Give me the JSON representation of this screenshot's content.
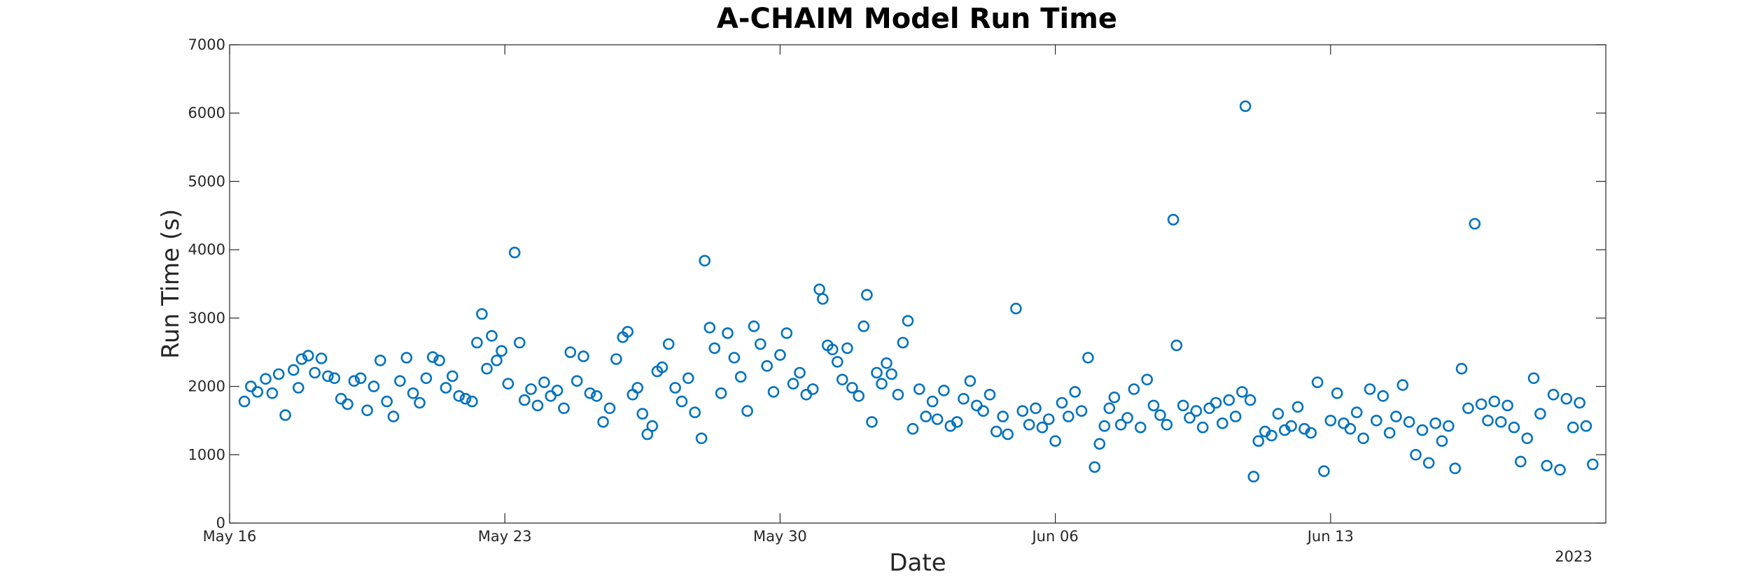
{
  "chart_data": {
    "type": "scatter",
    "title": "A-CHAIM Model Run Time",
    "xlabel": "Date",
    "ylabel": "Run Time (s)",
    "year_label": "2023",
    "x_axis": {
      "min": "2023-05-16",
      "max": "2023-06-20",
      "ticks": [
        {
          "date": "2023-05-16",
          "label": "May 16"
        },
        {
          "date": "2023-05-23",
          "label": "May 23"
        },
        {
          "date": "2023-05-30",
          "label": "May 30"
        },
        {
          "date": "2023-06-06",
          "label": "Jun 06"
        },
        {
          "date": "2023-06-13",
          "label": "Jun 13"
        }
      ]
    },
    "y_axis": {
      "min": 0,
      "max": 7000,
      "ticks": [
        0,
        1000,
        2000,
        3000,
        4000,
        5000,
        6000,
        7000
      ]
    },
    "grid": false,
    "marker": "open-circle",
    "color": "#0072BD",
    "note": "Approximately four runs per day; points are estimated from the plot.",
    "series": [
      {
        "points": [
          {
            "x": "2023-05-16T09:00",
            "y": 1780
          },
          {
            "x": "2023-05-16T13:00",
            "y": 2000
          },
          {
            "x": "2023-05-16T17:00",
            "y": 1920
          },
          {
            "x": "2023-05-16T22:00",
            "y": 2110
          },
          {
            "x": "2023-05-17T02:00",
            "y": 1900
          },
          {
            "x": "2023-05-17T06:00",
            "y": 2180
          },
          {
            "x": "2023-05-17T10:00",
            "y": 1580
          },
          {
            "x": "2023-05-17T15:00",
            "y": 2240
          },
          {
            "x": "2023-05-17T18:00",
            "y": 1980
          },
          {
            "x": "2023-05-17T20:00",
            "y": 2400
          },
          {
            "x": "2023-05-18T00:00",
            "y": 2450
          },
          {
            "x": "2023-05-18T04:00",
            "y": 2200
          },
          {
            "x": "2023-05-18T08:00",
            "y": 2410
          },
          {
            "x": "2023-05-18T12:00",
            "y": 2150
          },
          {
            "x": "2023-05-18T16:00",
            "y": 2120
          },
          {
            "x": "2023-05-18T20:00",
            "y": 1820
          },
          {
            "x": "2023-05-19T00:00",
            "y": 1740
          },
          {
            "x": "2023-05-19T04:00",
            "y": 2080
          },
          {
            "x": "2023-05-19T08:00",
            "y": 2120
          },
          {
            "x": "2023-05-19T12:00",
            "y": 1650
          },
          {
            "x": "2023-05-19T16:00",
            "y": 2000
          },
          {
            "x": "2023-05-19T20:00",
            "y": 2380
          },
          {
            "x": "2023-05-20T00:00",
            "y": 1780
          },
          {
            "x": "2023-05-20T04:00",
            "y": 1560
          },
          {
            "x": "2023-05-20T08:00",
            "y": 2080
          },
          {
            "x": "2023-05-20T12:00",
            "y": 2420
          },
          {
            "x": "2023-05-20T16:00",
            "y": 1900
          },
          {
            "x": "2023-05-20T20:00",
            "y": 1760
          },
          {
            "x": "2023-05-21T00:00",
            "y": 2120
          },
          {
            "x": "2023-05-21T04:00",
            "y": 2430
          },
          {
            "x": "2023-05-21T08:00",
            "y": 2380
          },
          {
            "x": "2023-05-21T12:00",
            "y": 1980
          },
          {
            "x": "2023-05-21T16:00",
            "y": 2150
          },
          {
            "x": "2023-05-21T20:00",
            "y": 1860
          },
          {
            "x": "2023-05-22T00:00",
            "y": 1820
          },
          {
            "x": "2023-05-22T04:00",
            "y": 1780
          },
          {
            "x": "2023-05-22T07:00",
            "y": 2640
          },
          {
            "x": "2023-05-22T10:00",
            "y": 3060
          },
          {
            "x": "2023-05-22T13:00",
            "y": 2260
          },
          {
            "x": "2023-05-22T16:00",
            "y": 2740
          },
          {
            "x": "2023-05-22T19:00",
            "y": 2380
          },
          {
            "x": "2023-05-22T22:00",
            "y": 2520
          },
          {
            "x": "2023-05-23T02:00",
            "y": 2040
          },
          {
            "x": "2023-05-23T06:00",
            "y": 3960
          },
          {
            "x": "2023-05-23T09:00",
            "y": 2640
          },
          {
            "x": "2023-05-23T12:00",
            "y": 1800
          },
          {
            "x": "2023-05-23T16:00",
            "y": 1960
          },
          {
            "x": "2023-05-23T20:00",
            "y": 1720
          },
          {
            "x": "2023-05-24T00:00",
            "y": 2060
          },
          {
            "x": "2023-05-24T04:00",
            "y": 1860
          },
          {
            "x": "2023-05-24T08:00",
            "y": 1940
          },
          {
            "x": "2023-05-24T12:00",
            "y": 1680
          },
          {
            "x": "2023-05-24T16:00",
            "y": 2500
          },
          {
            "x": "2023-05-24T20:00",
            "y": 2080
          },
          {
            "x": "2023-05-25T00:00",
            "y": 2440
          },
          {
            "x": "2023-05-25T04:00",
            "y": 1900
          },
          {
            "x": "2023-05-25T08:00",
            "y": 1860
          },
          {
            "x": "2023-05-25T12:00",
            "y": 1480
          },
          {
            "x": "2023-05-25T16:00",
            "y": 1680
          },
          {
            "x": "2023-05-25T20:00",
            "y": 2400
          },
          {
            "x": "2023-05-26T00:00",
            "y": 2720
          },
          {
            "x": "2023-05-26T03:00",
            "y": 2800
          },
          {
            "x": "2023-05-26T06:00",
            "y": 1880
          },
          {
            "x": "2023-05-26T09:00",
            "y": 1980
          },
          {
            "x": "2023-05-26T12:00",
            "y": 1600
          },
          {
            "x": "2023-05-26T15:00",
            "y": 1300
          },
          {
            "x": "2023-05-26T18:00",
            "y": 1420
          },
          {
            "x": "2023-05-26T21:00",
            "y": 2220
          },
          {
            "x": "2023-05-27T00:00",
            "y": 2280
          },
          {
            "x": "2023-05-27T04:00",
            "y": 2620
          },
          {
            "x": "2023-05-27T08:00",
            "y": 1980
          },
          {
            "x": "2023-05-27T12:00",
            "y": 1780
          },
          {
            "x": "2023-05-27T16:00",
            "y": 2120
          },
          {
            "x": "2023-05-27T20:00",
            "y": 1620
          },
          {
            "x": "2023-05-28T00:00",
            "y": 1240
          },
          {
            "x": "2023-05-28T02:00",
            "y": 3840
          },
          {
            "x": "2023-05-28T05:00",
            "y": 2860
          },
          {
            "x": "2023-05-28T08:00",
            "y": 2560
          },
          {
            "x": "2023-05-28T12:00",
            "y": 1900
          },
          {
            "x": "2023-05-28T16:00",
            "y": 2780
          },
          {
            "x": "2023-05-28T20:00",
            "y": 2420
          },
          {
            "x": "2023-05-29T00:00",
            "y": 2140
          },
          {
            "x": "2023-05-29T04:00",
            "y": 1640
          },
          {
            "x": "2023-05-29T08:00",
            "y": 2880
          },
          {
            "x": "2023-05-29T12:00",
            "y": 2620
          },
          {
            "x": "2023-05-29T16:00",
            "y": 2300
          },
          {
            "x": "2023-05-29T20:00",
            "y": 1920
          },
          {
            "x": "2023-05-30T00:00",
            "y": 2460
          },
          {
            "x": "2023-05-30T04:00",
            "y": 2780
          },
          {
            "x": "2023-05-30T08:00",
            "y": 2040
          },
          {
            "x": "2023-05-30T12:00",
            "y": 2200
          },
          {
            "x": "2023-05-30T16:00",
            "y": 1880
          },
          {
            "x": "2023-05-30T20:00",
            "y": 1960
          },
          {
            "x": "2023-05-31T00:00",
            "y": 3420
          },
          {
            "x": "2023-05-31T02:00",
            "y": 3280
          },
          {
            "x": "2023-05-31T05:00",
            "y": 2600
          },
          {
            "x": "2023-05-31T08:00",
            "y": 2540
          },
          {
            "x": "2023-05-31T11:00",
            "y": 2360
          },
          {
            "x": "2023-05-31T14:00",
            "y": 2100
          },
          {
            "x": "2023-05-31T17:00",
            "y": 2560
          },
          {
            "x": "2023-05-31T20:00",
            "y": 1980
          },
          {
            "x": "2023-06-01T00:00",
            "y": 1860
          },
          {
            "x": "2023-06-01T03:00",
            "y": 2880
          },
          {
            "x": "2023-06-01T05:00",
            "y": 3340
          },
          {
            "x": "2023-06-01T08:00",
            "y": 1480
          },
          {
            "x": "2023-06-01T11:00",
            "y": 2200
          },
          {
            "x": "2023-06-01T14:00",
            "y": 2040
          },
          {
            "x": "2023-06-01T17:00",
            "y": 2340
          },
          {
            "x": "2023-06-01T20:00",
            "y": 2180
          },
          {
            "x": "2023-06-02T00:00",
            "y": 1880
          },
          {
            "x": "2023-06-02T03:00",
            "y": 2640
          },
          {
            "x": "2023-06-02T06:00",
            "y": 2960
          },
          {
            "x": "2023-06-02T09:00",
            "y": 1380
          },
          {
            "x": "2023-06-02T13:00",
            "y": 1960
          },
          {
            "x": "2023-06-02T17:00",
            "y": 1560
          },
          {
            "x": "2023-06-02T21:00",
            "y": 1780
          },
          {
            "x": "2023-06-03T00:00",
            "y": 1520
          },
          {
            "x": "2023-06-03T04:00",
            "y": 1940
          },
          {
            "x": "2023-06-03T08:00",
            "y": 1420
          },
          {
            "x": "2023-06-03T12:00",
            "y": 1480
          },
          {
            "x": "2023-06-03T16:00",
            "y": 1820
          },
          {
            "x": "2023-06-03T20:00",
            "y": 2080
          },
          {
            "x": "2023-06-04T00:00",
            "y": 1720
          },
          {
            "x": "2023-06-04T04:00",
            "y": 1640
          },
          {
            "x": "2023-06-04T08:00",
            "y": 1880
          },
          {
            "x": "2023-06-04T12:00",
            "y": 1340
          },
          {
            "x": "2023-06-04T16:00",
            "y": 1560
          },
          {
            "x": "2023-06-04T19:00",
            "y": 1300
          },
          {
            "x": "2023-06-05T00:00",
            "y": 3140
          },
          {
            "x": "2023-06-05T04:00",
            "y": 1640
          },
          {
            "x": "2023-06-05T08:00",
            "y": 1440
          },
          {
            "x": "2023-06-05T12:00",
            "y": 1680
          },
          {
            "x": "2023-06-05T16:00",
            "y": 1400
          },
          {
            "x": "2023-06-05T20:00",
            "y": 1520
          },
          {
            "x": "2023-06-06T00:00",
            "y": 1200
          },
          {
            "x": "2023-06-06T04:00",
            "y": 1760
          },
          {
            "x": "2023-06-06T08:00",
            "y": 1560
          },
          {
            "x": "2023-06-06T12:00",
            "y": 1920
          },
          {
            "x": "2023-06-06T16:00",
            "y": 1640
          },
          {
            "x": "2023-06-06T20:00",
            "y": 2420
          },
          {
            "x": "2023-06-07T00:00",
            "y": 820
          },
          {
            "x": "2023-06-07T03:00",
            "y": 1160
          },
          {
            "x": "2023-06-07T06:00",
            "y": 1420
          },
          {
            "x": "2023-06-07T09:00",
            "y": 1680
          },
          {
            "x": "2023-06-07T12:00",
            "y": 1840
          },
          {
            "x": "2023-06-07T16:00",
            "y": 1440
          },
          {
            "x": "2023-06-07T20:00",
            "y": 1540
          },
          {
            "x": "2023-06-08T00:00",
            "y": 1960
          },
          {
            "x": "2023-06-08T04:00",
            "y": 1400
          },
          {
            "x": "2023-06-08T08:00",
            "y": 2100
          },
          {
            "x": "2023-06-08T12:00",
            "y": 1720
          },
          {
            "x": "2023-06-08T16:00",
            "y": 1580
          },
          {
            "x": "2023-06-08T20:00",
            "y": 1440
          },
          {
            "x": "2023-06-09T00:00",
            "y": 4440
          },
          {
            "x": "2023-06-09T02:00",
            "y": 2600
          },
          {
            "x": "2023-06-09T06:00",
            "y": 1720
          },
          {
            "x": "2023-06-09T10:00",
            "y": 1540
          },
          {
            "x": "2023-06-09T14:00",
            "y": 1640
          },
          {
            "x": "2023-06-09T18:00",
            "y": 1400
          },
          {
            "x": "2023-06-09T22:00",
            "y": 1680
          },
          {
            "x": "2023-06-10T02:00",
            "y": 1760
          },
          {
            "x": "2023-06-10T06:00",
            "y": 1460
          },
          {
            "x": "2023-06-10T10:00",
            "y": 1800
          },
          {
            "x": "2023-06-10T14:00",
            "y": 1560
          },
          {
            "x": "2023-06-10T18:00",
            "y": 1920
          },
          {
            "x": "2023-06-10T20:00",
            "y": 6100
          },
          {
            "x": "2023-06-10T23:00",
            "y": 1800
          },
          {
            "x": "2023-06-11T01:00",
            "y": 680
          },
          {
            "x": "2023-06-11T04:00",
            "y": 1200
          },
          {
            "x": "2023-06-11T08:00",
            "y": 1340
          },
          {
            "x": "2023-06-11T12:00",
            "y": 1280
          },
          {
            "x": "2023-06-11T16:00",
            "y": 1600
          },
          {
            "x": "2023-06-11T20:00",
            "y": 1360
          },
          {
            "x": "2023-06-12T00:00",
            "y": 1420
          },
          {
            "x": "2023-06-12T04:00",
            "y": 1700
          },
          {
            "x": "2023-06-12T08:00",
            "y": 1380
          },
          {
            "x": "2023-06-12T12:00",
            "y": 1320
          },
          {
            "x": "2023-06-12T16:00",
            "y": 2060
          },
          {
            "x": "2023-06-12T20:00",
            "y": 760
          },
          {
            "x": "2023-06-13T00:00",
            "y": 1500
          },
          {
            "x": "2023-06-13T04:00",
            "y": 1900
          },
          {
            "x": "2023-06-13T08:00",
            "y": 1460
          },
          {
            "x": "2023-06-13T12:00",
            "y": 1380
          },
          {
            "x": "2023-06-13T16:00",
            "y": 1620
          },
          {
            "x": "2023-06-13T20:00",
            "y": 1240
          },
          {
            "x": "2023-06-14T00:00",
            "y": 1960
          },
          {
            "x": "2023-06-14T04:00",
            "y": 1500
          },
          {
            "x": "2023-06-14T08:00",
            "y": 1860
          },
          {
            "x": "2023-06-14T12:00",
            "y": 1320
          },
          {
            "x": "2023-06-14T16:00",
            "y": 1560
          },
          {
            "x": "2023-06-14T20:00",
            "y": 2020
          },
          {
            "x": "2023-06-15T00:00",
            "y": 1480
          },
          {
            "x": "2023-06-15T04:00",
            "y": 1000
          },
          {
            "x": "2023-06-15T08:00",
            "y": 1360
          },
          {
            "x": "2023-06-15T12:00",
            "y": 880
          },
          {
            "x": "2023-06-15T16:00",
            "y": 1460
          },
          {
            "x": "2023-06-15T20:00",
            "y": 1200
          },
          {
            "x": "2023-06-16T00:00",
            "y": 1420
          },
          {
            "x": "2023-06-16T04:00",
            "y": 800
          },
          {
            "x": "2023-06-16T08:00",
            "y": 2260
          },
          {
            "x": "2023-06-16T12:00",
            "y": 1680
          },
          {
            "x": "2023-06-16T16:00",
            "y": 4380
          },
          {
            "x": "2023-06-16T20:00",
            "y": 1740
          },
          {
            "x": "2023-06-17T00:00",
            "y": 1500
          },
          {
            "x": "2023-06-17T04:00",
            "y": 1780
          },
          {
            "x": "2023-06-17T08:00",
            "y": 1480
          },
          {
            "x": "2023-06-17T12:00",
            "y": 1720
          },
          {
            "x": "2023-06-17T16:00",
            "y": 1400
          },
          {
            "x": "2023-06-17T20:00",
            "y": 900
          },
          {
            "x": "2023-06-18T00:00",
            "y": 1240
          },
          {
            "x": "2023-06-18T04:00",
            "y": 2120
          },
          {
            "x": "2023-06-18T08:00",
            "y": 1600
          },
          {
            "x": "2023-06-18T12:00",
            "y": 840
          },
          {
            "x": "2023-06-18T16:00",
            "y": 1880
          },
          {
            "x": "2023-06-18T20:00",
            "y": 780
          },
          {
            "x": "2023-06-19T00:00",
            "y": 1820
          },
          {
            "x": "2023-06-19T04:00",
            "y": 1400
          },
          {
            "x": "2023-06-19T08:00",
            "y": 1760
          },
          {
            "x": "2023-06-19T12:00",
            "y": 1420
          },
          {
            "x": "2023-06-19T16:00",
            "y": 860
          }
        ]
      }
    ]
  }
}
